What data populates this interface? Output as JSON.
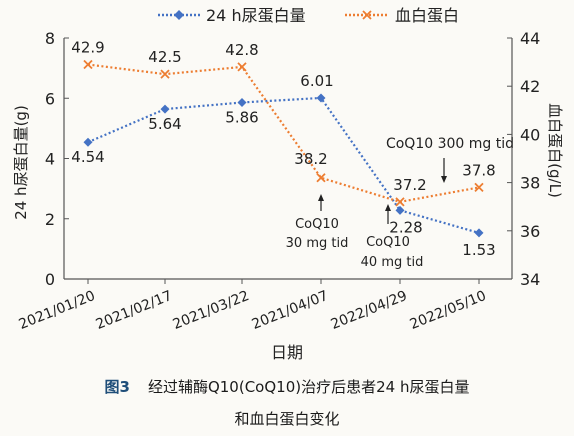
{
  "chart_data": {
    "type": "line",
    "categories": [
      "2021/01/20",
      "2021/02/17",
      "2021/03/22",
      "2021/04/07",
      "2022/04/29",
      "2022/05/10"
    ],
    "xlabel": "日期",
    "ylabel_left": "24 h尿蛋白量(g)",
    "ylabel_right": "血白蛋白(g/L)",
    "ylim_left": [
      0,
      8
    ],
    "ylim_right": [
      34,
      44
    ],
    "yticks_left": [
      0,
      2,
      4,
      6,
      8
    ],
    "yticks_right": [
      34,
      36,
      38,
      40,
      42,
      44
    ],
    "legend_position": "top",
    "grid": false,
    "series": [
      {
        "name": "24 h尿蛋白量",
        "axis": "left",
        "color": "#4472c4",
        "marker": "diamond",
        "values": [
          4.54,
          5.64,
          5.86,
          6.01,
          2.28,
          1.53
        ],
        "labels": [
          "4.54",
          "5.64",
          "5.86",
          "6.01",
          "2.28",
          "1.53"
        ]
      },
      {
        "name": "血白蛋白",
        "axis": "right",
        "color": "#ed7d31",
        "marker": "x",
        "values": [
          42.9,
          42.5,
          42.8,
          38.2,
          37.2,
          37.8
        ],
        "labels": [
          "42.9",
          "42.5",
          "42.8",
          "38.2",
          "37.2",
          "37.8"
        ]
      }
    ],
    "annotations": [
      {
        "lines": [
          "CoQ10",
          "30 mg tid"
        ],
        "category_index": 3
      },
      {
        "lines": [
          "CoQ10",
          "40 mg tid"
        ],
        "category_index": 4
      },
      {
        "lines": [
          "CoQ10 300 mg tid"
        ],
        "category_index": 5
      }
    ]
  },
  "caption": {
    "figure_label": "图3",
    "line1": "经过辅酶Q10(CoQ10)治疗后患者24 h尿蛋白量",
    "line2": "和血白蛋白变化"
  }
}
